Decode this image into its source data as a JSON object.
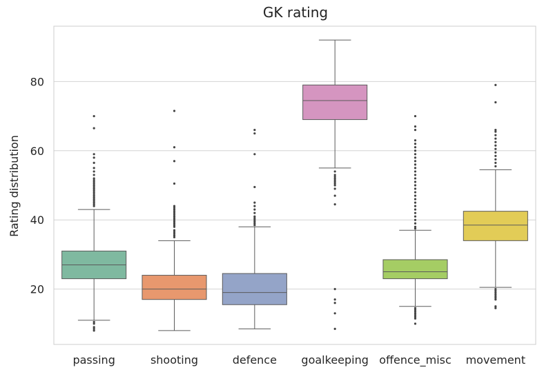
{
  "chart_data": {
    "type": "box",
    "title": "GK rating",
    "xlabel": "",
    "ylabel": "Rating distribution",
    "ylim": [
      4,
      96
    ],
    "yticks": [
      20,
      40,
      60,
      80
    ],
    "grid": true,
    "colors": {
      "passing": "#7fb9a0",
      "shooting": "#e8986e",
      "defence": "#94a4c8",
      "goalkeeping": "#d595c0",
      "offence_misc": "#a5cd64",
      "movement": "#e2cc57",
      "line": "#5a5a5a",
      "grid": "#d3d3d3",
      "frame": "#cccccc"
    },
    "categories": [
      "passing",
      "shooting",
      "defence",
      "goalkeeping",
      "offence_misc",
      "movement"
    ],
    "boxes": [
      {
        "name": "passing",
        "whisker_low": 11,
        "q1": 23,
        "median": 27,
        "q3": 31,
        "whisker_high": 43,
        "outliers": [
          8,
          8.5,
          9,
          10,
          10.5,
          44,
          44.5,
          45,
          45.5,
          46,
          46.5,
          47,
          47.5,
          48,
          48.5,
          49,
          49.5,
          50,
          50.5,
          51,
          51.5,
          52,
          53,
          54,
          55,
          56.5,
          58,
          59,
          66.5,
          70
        ]
      },
      {
        "name": "shooting",
        "whisker_low": 8,
        "q1": 17,
        "median": 20,
        "q3": 24,
        "whisker_high": 34,
        "outliers": [
          35,
          35.5,
          36,
          36.5,
          37,
          38,
          38.5,
          39,
          39.5,
          40,
          40.5,
          41,
          41.5,
          42,
          42.5,
          43,
          43.5,
          44,
          50.5,
          57,
          61,
          71.5
        ]
      },
      {
        "name": "defence",
        "whisker_low": 8.5,
        "q1": 15.5,
        "median": 19,
        "q3": 24.5,
        "whisker_high": 38,
        "outliers": [
          38.5,
          39,
          39.5,
          40,
          40.5,
          41,
          42,
          43,
          44,
          45,
          49.5,
          59,
          65,
          66
        ]
      },
      {
        "name": "goalkeeping",
        "whisker_low": 55,
        "q1": 69,
        "median": 74.5,
        "q3": 79,
        "whisker_high": 92,
        "outliers": [
          8.5,
          13,
          16,
          17,
          20,
          44.5,
          47,
          49,
          50,
          50.5,
          51,
          51.5,
          52,
          52.5,
          53,
          54
        ]
      },
      {
        "name": "offence_misc",
        "whisker_low": 15,
        "q1": 23,
        "median": 25,
        "q3": 28.5,
        "whisker_high": 37,
        "outliers": [
          10,
          11.5,
          12,
          12.5,
          13,
          13.5,
          14,
          14.5,
          37.5,
          38,
          39,
          40,
          41,
          42,
          43,
          44,
          45,
          46,
          47,
          48,
          49,
          50,
          51,
          52,
          53,
          54,
          55,
          56,
          57,
          58,
          59,
          60,
          61,
          62,
          63,
          66,
          67,
          70
        ]
      },
      {
        "name": "movement",
        "whisker_low": 20.5,
        "q1": 34,
        "median": 38.5,
        "q3": 42.5,
        "whisker_high": 54.5,
        "outliers": [
          14.5,
          15,
          17,
          17.5,
          18,
          18.5,
          19,
          19.5,
          20,
          55.5,
          56.5,
          57.5,
          58.5,
          59.5,
          60.5,
          61.5,
          62.5,
          63.5,
          64.5,
          65.5,
          66,
          74,
          79
        ]
      }
    ]
  }
}
